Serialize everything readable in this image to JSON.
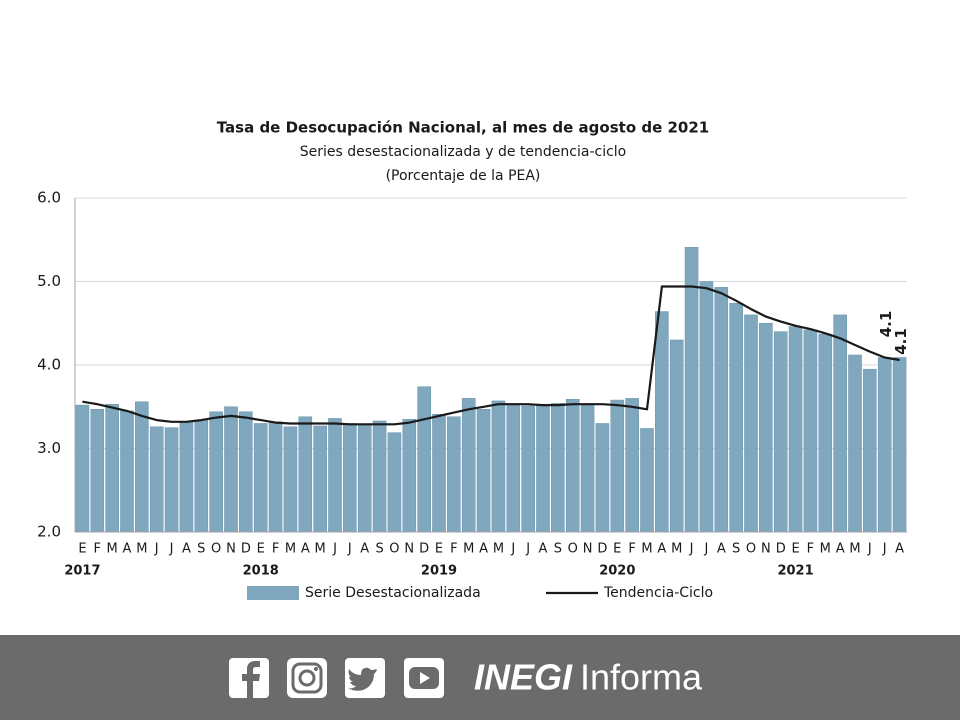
{
  "chart_data": {
    "type": "bar-line",
    "title": "Tasa de Desocupación Nacional, al mes de agosto de 2021",
    "subtitle": "Series desestacionalizada y de tendencia-ciclo",
    "units": "(Porcentaje de la PEA)",
    "categories": [
      "E",
      "F",
      "M",
      "A",
      "M",
      "J",
      "J",
      "A",
      "S",
      "O",
      "N",
      "D",
      "E",
      "F",
      "M",
      "A",
      "M",
      "J",
      "J",
      "A",
      "S",
      "O",
      "N",
      "D",
      "E",
      "F",
      "M",
      "A",
      "M",
      "J",
      "J",
      "A",
      "S",
      "O",
      "N",
      "D",
      "E",
      "F",
      "M",
      "A",
      "M",
      "J",
      "J",
      "A",
      "S",
      "O",
      "N",
      "D",
      "E",
      "F",
      "M",
      "A",
      "M",
      "J",
      "J",
      "A"
    ],
    "years": [
      "2017",
      "2018",
      "2019",
      "2020",
      "2021"
    ],
    "ylim": [
      2,
      6
    ],
    "yticks": [
      {
        "value": 2,
        "label": "2.0"
      },
      {
        "value": 3,
        "label": "3.0"
      },
      {
        "value": 4,
        "label": "4.0"
      },
      {
        "value": 5,
        "label": "5.0"
      },
      {
        "value": 6,
        "label": "6.0"
      }
    ],
    "grid": true,
    "series": [
      {
        "name": "Serie Desestacionalizada",
        "type": "bar",
        "color": "#7fa7be",
        "values": [
          3.52,
          3.47,
          3.53,
          3.45,
          3.56,
          3.26,
          3.25,
          3.31,
          3.34,
          3.44,
          3.5,
          3.44,
          3.3,
          3.32,
          3.26,
          3.38,
          3.27,
          3.36,
          3.3,
          3.29,
          3.33,
          3.19,
          3.35,
          3.74,
          3.41,
          3.38,
          3.6,
          3.47,
          3.57,
          3.53,
          3.51,
          3.52,
          3.54,
          3.59,
          3.52,
          3.3,
          3.58,
          3.6,
          3.24,
          4.64,
          4.3,
          5.41,
          5.0,
          4.93,
          4.74,
          4.6,
          4.5,
          4.4,
          4.46,
          4.42,
          4.37,
          4.6,
          4.12,
          3.95,
          4.09,
          4.09
        ],
        "value_labels": [
          null,
          null,
          null,
          null,
          null,
          null,
          null,
          null,
          null,
          null,
          null,
          null,
          null,
          null,
          null,
          null,
          null,
          null,
          null,
          null,
          null,
          null,
          null,
          null,
          null,
          null,
          null,
          null,
          null,
          null,
          null,
          null,
          null,
          null,
          null,
          null,
          null,
          null,
          null,
          null,
          null,
          null,
          null,
          null,
          null,
          null,
          null,
          null,
          null,
          null,
          null,
          null,
          null,
          null,
          null,
          "4.1"
        ]
      },
      {
        "name": "Tendencia-Ciclo",
        "type": "line",
        "color": "#1a1a1a",
        "values": [
          3.56,
          3.53,
          3.49,
          3.45,
          3.39,
          3.34,
          3.32,
          3.32,
          3.34,
          3.37,
          3.39,
          3.37,
          3.34,
          3.31,
          3.3,
          3.3,
          3.3,
          3.3,
          3.29,
          3.29,
          3.29,
          3.29,
          3.31,
          3.35,
          3.39,
          3.43,
          3.47,
          3.5,
          3.53,
          3.53,
          3.53,
          3.52,
          3.52,
          3.53,
          3.53,
          3.53,
          3.52,
          3.5,
          3.47,
          4.94,
          4.94,
          4.94,
          4.92,
          4.86,
          4.77,
          4.67,
          4.58,
          4.52,
          4.47,
          4.43,
          4.38,
          4.32,
          4.24,
          4.16,
          4.09,
          4.06
        ],
        "value_labels": [
          null,
          null,
          null,
          null,
          null,
          null,
          null,
          null,
          null,
          null,
          null,
          null,
          null,
          null,
          null,
          null,
          null,
          null,
          null,
          null,
          null,
          null,
          null,
          null,
          null,
          null,
          null,
          null,
          null,
          null,
          null,
          null,
          null,
          null,
          null,
          null,
          null,
          null,
          null,
          null,
          null,
          null,
          null,
          null,
          null,
          null,
          null,
          null,
          null,
          null,
          null,
          null,
          null,
          null,
          null,
          "4.1"
        ]
      }
    ]
  },
  "footer": {
    "brand": "INEGI",
    "tagline": "Informa"
  }
}
